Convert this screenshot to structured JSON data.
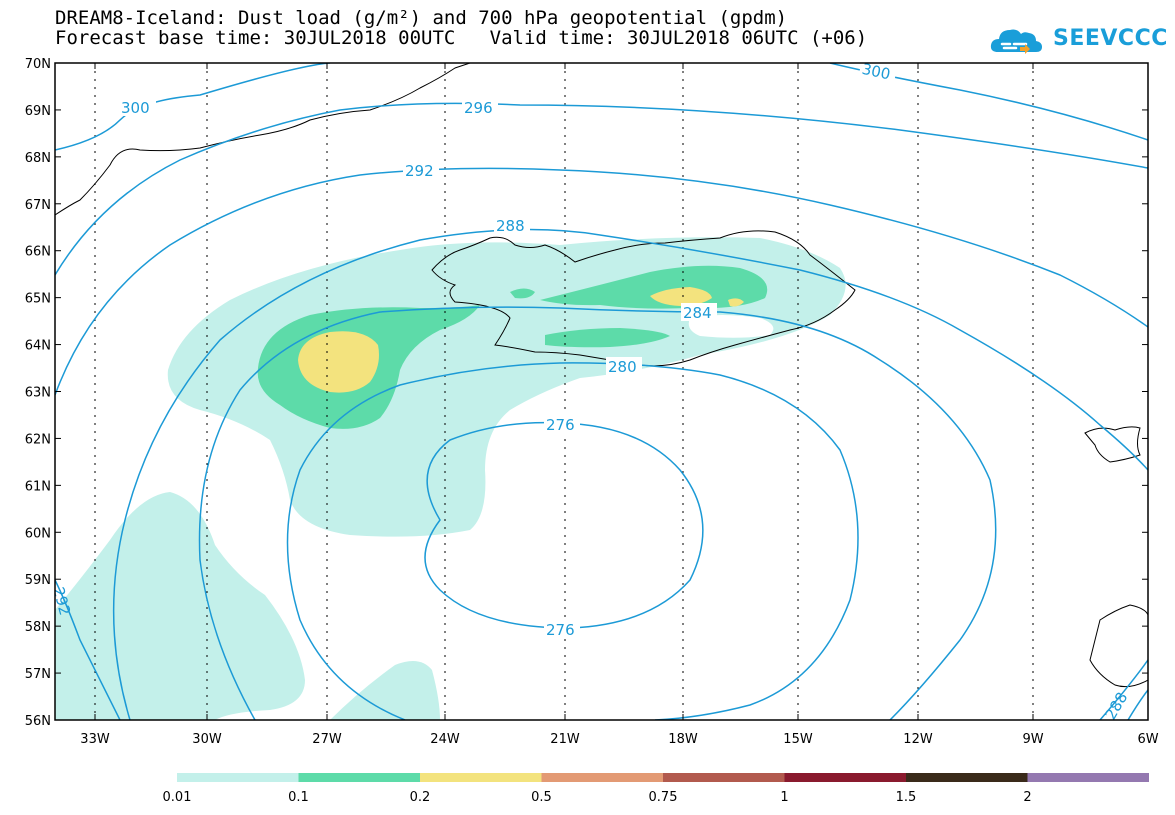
{
  "title": {
    "line1": "DREAM8-Iceland: Dust load (g/m²) and 700 hPa geopotential (gpdm)",
    "line2": "Forecast base time: 30JUL2018 00UTC   Valid time: 30JUL2018 06UTC (+06)"
  },
  "logo": {
    "text": "SEEVCCC",
    "icon": "cloud-logo-icon",
    "color": "#1a9ed9"
  },
  "axes": {
    "lat_labels": [
      "70N",
      "69N",
      "68N",
      "67N",
      "66N",
      "65N",
      "64N",
      "63N",
      "62N",
      "61N",
      "60N",
      "59N",
      "58N",
      "57N",
      "56N"
    ],
    "lon_labels": [
      "33W",
      "30W",
      "27W",
      "24W",
      "21W",
      "18W",
      "15W",
      "12W",
      "9W",
      "6W"
    ]
  },
  "contours": {
    "color": "#1c9ad6",
    "labels": [
      "300",
      "296",
      "300",
      "292",
      "288",
      "284",
      "280",
      "276",
      "276",
      "292",
      "288"
    ]
  },
  "colorbar": {
    "colors": [
      "#c3f0ea",
      "#5ddba9",
      "#f3e37e",
      "#e39a74",
      "#b25a4e",
      "#8a1a2e",
      "#3a2a1a",
      "#9478b0"
    ],
    "labels": [
      "0.01",
      "0.1",
      "0.2",
      "0.5",
      "0.75",
      "1",
      "1.5",
      "2"
    ]
  },
  "chart_data": {
    "type": "heatmap",
    "title": "DREAM8-Iceland: Dust load (g/m²) and 700 hPa geopotential (gpdm)",
    "lat_range": [
      56,
      70
    ],
    "lon_range": [
      -34,
      -6
    ],
    "dust_levels": [
      0.01,
      0.1,
      0.2,
      0.5,
      0.75,
      1,
      1.5,
      2
    ],
    "geopotential_contours_gpdm": [
      276,
      280,
      284,
      288,
      292,
      296,
      300
    ]
  }
}
